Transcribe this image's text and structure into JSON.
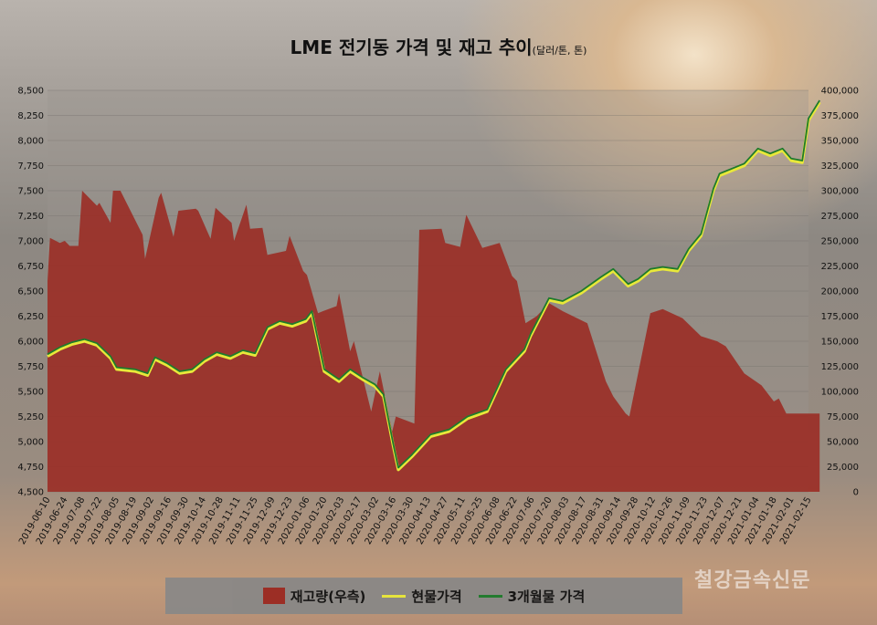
{
  "title": "LME 전기동 가격 및 재고 추이",
  "subtitle": "(달러/톤, 톤)",
  "watermark": "철강금속신문",
  "legend": {
    "stock": "재고량(우측)",
    "spot": "현물가격",
    "future": "3개월물 가격"
  },
  "colors": {
    "stock": "#9b2a22",
    "spot": "#e8e83a",
    "future": "#1e7a2c"
  },
  "chart_data": {
    "type": "area",
    "title": "LME 전기동 가격 및 재고 추이",
    "subtitle": "(달러/톤, 톤)",
    "ylim_left": [
      4500,
      8500
    ],
    "ylim_right": [
      0,
      400000
    ],
    "y_left_ticks": [
      "4,500",
      "4,750",
      "5,000",
      "5,250",
      "5,500",
      "5,750",
      "6,000",
      "6,250",
      "6,500",
      "6,750",
      "7,000",
      "7,250",
      "7,500",
      "7,750",
      "8,000",
      "8,250",
      "8,500"
    ],
    "y_right_ticks": [
      "0",
      "25,000",
      "50,000",
      "75,000",
      "100,000",
      "125,000",
      "150,000",
      "175,000",
      "200,000",
      "225,000",
      "250,000",
      "275,000",
      "300,000",
      "325,000",
      "350,000",
      "375,000",
      "400,000"
    ],
    "x_ticks": [
      "2019-06-10",
      "2019-06-24",
      "2019-07-08",
      "2019-07-22",
      "2019-08-05",
      "2019-08-19",
      "2019-09-02",
      "2019-09-16",
      "2019-09-30",
      "2019-10-14",
      "2019-10-28",
      "2019-11-11",
      "2019-11-25",
      "2019-12-09",
      "2019-12-23",
      "2020-01-06",
      "2020-01-20",
      "2020-02-03",
      "2020-02-17",
      "2020-03-02",
      "2020-03-16",
      "2020-03-30",
      "2020-04-13",
      "2020-04-27",
      "2020-05-11",
      "2020-05-25",
      "2020-06-08",
      "2020-06-22",
      "2020-07-06",
      "2020-07-20",
      "2020-08-03",
      "2020-08-17",
      "2020-08-31",
      "2020-09-14",
      "2020-09-28",
      "2020-10-12",
      "2020-10-26",
      "2020-11-09",
      "2020-11-23",
      "2020-12-07",
      "2020-12-21",
      "2021-01-04",
      "2021-01-18",
      "2021-02-01",
      "2021-02-15"
    ],
    "series": [
      {
        "name": "재고량(우측)",
        "axis": "right",
        "x": [
          "2019-06-10",
          "2019-06-12",
          "2019-06-20",
          "2019-06-24",
          "2019-06-28",
          "2019-07-05",
          "2019-07-08",
          "2019-07-20",
          "2019-07-22",
          "2019-07-31",
          "2019-08-02",
          "2019-08-08",
          "2019-08-26",
          "2019-08-28",
          "2019-09-08",
          "2019-09-10",
          "2019-09-20",
          "2019-09-24",
          "2019-10-08",
          "2019-10-10",
          "2019-10-20",
          "2019-10-24",
          "2019-11-06",
          "2019-11-08",
          "2019-11-18",
          "2019-11-21",
          "2019-12-01",
          "2019-12-05",
          "2019-12-20",
          "2019-12-23",
          "2020-01-03",
          "2020-01-06",
          "2020-01-15",
          "2020-01-19",
          "2020-01-30",
          "2020-02-01",
          "2020-02-10",
          "2020-02-13",
          "2020-02-27",
          "2020-03-05",
          "2020-03-15",
          "2020-03-18",
          "2020-04-02",
          "2020-04-06",
          "2020-04-24",
          "2020-04-27",
          "2020-05-09",
          "2020-05-14",
          "2020-05-27",
          "2020-06-10",
          "2020-06-20",
          "2020-06-24",
          "2020-07-01",
          "2020-07-10",
          "2020-07-20",
          "2020-07-31",
          "2020-08-20",
          "2020-09-04",
          "2020-09-10",
          "2020-09-20",
          "2020-09-23",
          "2020-10-10",
          "2020-10-20",
          "2020-11-05",
          "2020-11-20",
          "2020-12-03",
          "2020-12-10",
          "2020-12-25",
          "2021-01-08",
          "2021-01-18",
          "2021-01-22",
          "2021-01-28",
          "2021-02-10",
          "2021-02-24"
        ],
        "values": [
          210000,
          253000,
          248000,
          250000,
          245000,
          245000,
          300000,
          285000,
          288000,
          268000,
          300000,
          300000,
          256000,
          232000,
          293000,
          298000,
          254000,
          280000,
          282000,
          280000,
          252000,
          283000,
          268000,
          250000,
          286000,
          262000,
          263000,
          236000,
          240000,
          255000,
          220000,
          216000,
          178000,
          180000,
          185000,
          198000,
          140000,
          150000,
          80000,
          120000,
          60000,
          75000,
          68000,
          261000,
          262000,
          248000,
          244000,
          276000,
          243000,
          248000,
          215000,
          210000,
          168000,
          175000,
          188000,
          180000,
          168000,
          110000,
          95000,
          78000,
          75000,
          178000,
          182000,
          173000,
          155000,
          150000,
          145000,
          118000,
          106000,
          90000,
          93000,
          78000,
          78000,
          78000
        ]
      },
      {
        "name": "현물가격",
        "axis": "left",
        "x": [
          "2019-06-10",
          "2019-06-20",
          "2019-06-30",
          "2019-07-10",
          "2019-07-20",
          "2019-07-31",
          "2019-08-05",
          "2019-08-20",
          "2019-08-30",
          "2019-09-05",
          "2019-09-15",
          "2019-09-25",
          "2019-10-05",
          "2019-10-15",
          "2019-10-25",
          "2019-11-05",
          "2019-11-15",
          "2019-11-25",
          "2019-12-05",
          "2019-12-15",
          "2019-12-25",
          "2020-01-05",
          "2020-01-10",
          "2020-01-20",
          "2020-02-01",
          "2020-02-10",
          "2020-02-20",
          "2020-03-01",
          "2020-03-08",
          "2020-03-16",
          "2020-03-20",
          "2020-03-31",
          "2020-04-15",
          "2020-04-30",
          "2020-05-15",
          "2020-05-31",
          "2020-06-15",
          "2020-06-30",
          "2020-07-05",
          "2020-07-20",
          "2020-07-31",
          "2020-08-15",
          "2020-08-31",
          "2020-09-10",
          "2020-09-22",
          "2020-09-30",
          "2020-10-10",
          "2020-10-20",
          "2020-11-01",
          "2020-11-10",
          "2020-11-20",
          "2020-11-30",
          "2020-12-05",
          "2020-12-15",
          "2020-12-25",
          "2021-01-05",
          "2021-01-15",
          "2021-01-25",
          "2021-02-01",
          "2021-02-10",
          "2021-02-15",
          "2021-02-24"
        ],
        "values": [
          5850,
          5920,
          5970,
          6000,
          5960,
          5830,
          5720,
          5700,
          5660,
          5820,
          5760,
          5680,
          5700,
          5800,
          5870,
          5830,
          5890,
          5860,
          6120,
          6180,
          6150,
          6200,
          6280,
          5700,
          5600,
          5700,
          5620,
          5550,
          5450,
          4950,
          4720,
          4850,
          5050,
          5100,
          5230,
          5300,
          5700,
          5900,
          6050,
          6410,
          6380,
          6480,
          6620,
          6700,
          6550,
          6600,
          6700,
          6720,
          6700,
          6900,
          7050,
          7500,
          7650,
          7700,
          7750,
          7900,
          7850,
          7900,
          7800,
          7780,
          8200,
          8380
        ]
      },
      {
        "name": "3개월물 가격",
        "axis": "left",
        "x": [
          "2019-06-10",
          "2019-06-20",
          "2019-06-30",
          "2019-07-10",
          "2019-07-20",
          "2019-07-31",
          "2019-08-05",
          "2019-08-20",
          "2019-08-30",
          "2019-09-05",
          "2019-09-15",
          "2019-09-25",
          "2019-10-05",
          "2019-10-15",
          "2019-10-25",
          "2019-11-05",
          "2019-11-15",
          "2019-11-25",
          "2019-12-05",
          "2019-12-15",
          "2019-12-25",
          "2020-01-05",
          "2020-01-10",
          "2020-01-20",
          "2020-02-01",
          "2020-02-10",
          "2020-02-20",
          "2020-03-01",
          "2020-03-08",
          "2020-03-16",
          "2020-03-20",
          "2020-03-31",
          "2020-04-15",
          "2020-04-30",
          "2020-05-15",
          "2020-05-31",
          "2020-06-15",
          "2020-06-30",
          "2020-07-05",
          "2020-07-20",
          "2020-07-31",
          "2020-08-15",
          "2020-08-31",
          "2020-09-10",
          "2020-09-22",
          "2020-09-30",
          "2020-10-10",
          "2020-10-20",
          "2020-11-01",
          "2020-11-10",
          "2020-11-20",
          "2020-11-30",
          "2020-12-05",
          "2020-12-15",
          "2020-12-25",
          "2021-01-05",
          "2021-01-15",
          "2021-01-25",
          "2021-02-01",
          "2021-02-10",
          "2021-02-15",
          "2021-02-24"
        ],
        "values": [
          5870,
          5940,
          5990,
          6020,
          5980,
          5850,
          5740,
          5720,
          5680,
          5840,
          5780,
          5700,
          5720,
          5820,
          5890,
          5850,
          5910,
          5880,
          6140,
          6200,
          6170,
          6220,
          6300,
          5720,
          5620,
          5720,
          5640,
          5570,
          5470,
          4970,
          4740,
          4870,
          5070,
          5120,
          5250,
          5320,
          5720,
          5920,
          6070,
          6430,
          6400,
          6500,
          6640,
          6720,
          6570,
          6620,
          6720,
          6740,
          6720,
          6920,
          7070,
          7520,
          7670,
          7720,
          7770,
          7920,
          7870,
          7920,
          7820,
          7800,
          8220,
          8400
        ]
      }
    ]
  }
}
